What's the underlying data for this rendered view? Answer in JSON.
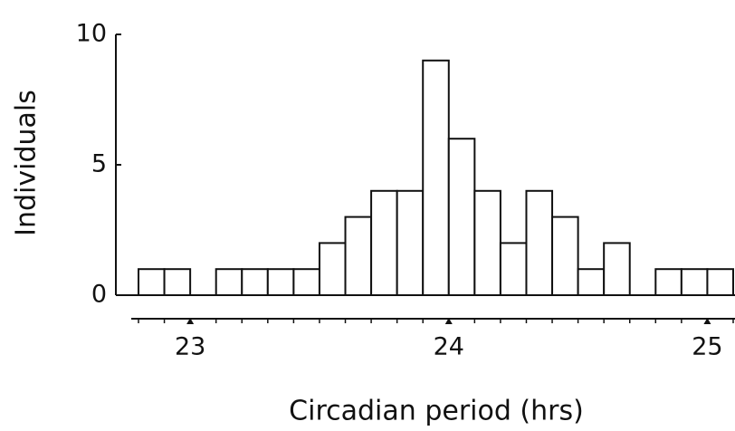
{
  "chart_data": {
    "type": "histogram",
    "xlabel": "Circadian period  (hrs)",
    "ylabel": "Individuals",
    "bins": [
      22.8,
      22.9,
      23.0,
      23.1,
      23.2,
      23.3,
      23.4,
      23.5,
      23.6,
      23.7,
      23.8,
      23.9,
      24.0,
      24.1,
      24.2,
      24.3,
      24.4,
      24.5,
      24.6,
      24.7,
      24.8,
      24.9,
      25.0,
      25.1
    ],
    "values": [
      1,
      1,
      0,
      1,
      1,
      1,
      1,
      2,
      3,
      4,
      4,
      9,
      6,
      4,
      2,
      4,
      3,
      1,
      2,
      0,
      1,
      1,
      1
    ],
    "color": "#ffffff",
    "xlim": [
      22.8,
      25.1
    ],
    "xticks": [
      23,
      24,
      25
    ],
    "ylim": [
      0,
      10
    ],
    "yticks": [
      0,
      5,
      10
    ]
  }
}
